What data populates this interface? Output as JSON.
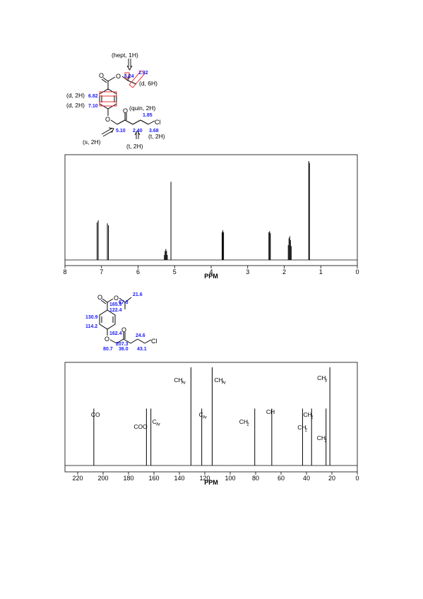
{
  "hnmr_structure": {
    "atoms": {
      "o": "O",
      "cl": "Cl"
    },
    "annotations": {
      "hept": "(hept, 1H)",
      "d6h": "(d, 6H)",
      "d2h_a": "(d, 2H)",
      "d2h_b": "(d, 2H)",
      "quin": "(quin, 2H)",
      "s2h": "(s, 2H)",
      "t2h_a": "(t, 2H)",
      "t2h_b": "(t, 2H)"
    },
    "shifts": {
      "ch": "5.24",
      "ch3": "1.32",
      "ar_a": "6.82",
      "ar_b": "7.10",
      "quin": "1.85",
      "och2": "5.10",
      "coch2": "2.40",
      "ch2cl": "3.68"
    }
  },
  "cnmr_structure": {
    "atoms": {
      "o": "O",
      "cl": "Cl"
    },
    "shifts": {
      "ch3": "21.6",
      "ch": "67.3",
      "coo": "165.9",
      "c_ipso": "122.4",
      "ch_ar_a": "130.9",
      "ch_ar_b": "114.2",
      "c_o": "162.4",
      "co": "207.3",
      "ch2_b": "24.6",
      "och2": "80.7",
      "coch2": "36.0",
      "ch2cl": "43.1"
    }
  },
  "chart_data": [
    {
      "type": "line",
      "xlabel": "PPM",
      "xlim": [
        8,
        0
      ],
      "xticks": [
        8,
        7,
        6,
        5,
        4,
        3,
        2,
        1,
        0
      ],
      "peaks": [
        {
          "shift": 7.12,
          "height": 0.38
        },
        {
          "shift": 7.09,
          "height": 0.4
        },
        {
          "shift": 6.84,
          "height": 0.37
        },
        {
          "shift": 6.81,
          "height": 0.35
        },
        {
          "shift": 5.28,
          "height": 0.05
        },
        {
          "shift": 5.26,
          "height": 0.09
        },
        {
          "shift": 5.24,
          "height": 0.11
        },
        {
          "shift": 5.22,
          "height": 0.09
        },
        {
          "shift": 5.2,
          "height": 0.05
        },
        {
          "shift": 5.1,
          "height": 0.79
        },
        {
          "shift": 3.7,
          "height": 0.28
        },
        {
          "shift": 3.68,
          "height": 0.3
        },
        {
          "shift": 3.66,
          "height": 0.28
        },
        {
          "shift": 2.42,
          "height": 0.28
        },
        {
          "shift": 2.4,
          "height": 0.29
        },
        {
          "shift": 2.38,
          "height": 0.27
        },
        {
          "shift": 1.89,
          "height": 0.15
        },
        {
          "shift": 1.87,
          "height": 0.22
        },
        {
          "shift": 1.85,
          "height": 0.24
        },
        {
          "shift": 1.83,
          "height": 0.2
        },
        {
          "shift": 1.81,
          "height": 0.14
        },
        {
          "shift": 1.33,
          "height": 1.0
        },
        {
          "shift": 1.31,
          "height": 0.98
        }
      ]
    },
    {
      "type": "bar",
      "xlabel": "PPM",
      "xlim": [
        230,
        0
      ],
      "xticks": [
        220,
        200,
        180,
        160,
        140,
        120,
        100,
        80,
        60,
        40,
        20,
        0
      ],
      "peaks": [
        {
          "shift": 207.3,
          "height": 0.58,
          "label": "CO",
          "sub": ""
        },
        {
          "shift": 165.9,
          "height": 0.58,
          "label": "COO",
          "sub": ""
        },
        {
          "shift": 162.4,
          "height": 0.58,
          "label": "C",
          "sub": "Ar"
        },
        {
          "shift": 130.9,
          "height": 1.0,
          "label": "CH",
          "sub": "Ar"
        },
        {
          "shift": 122.4,
          "height": 0.58,
          "label": "C",
          "sub": "Ar"
        },
        {
          "shift": 114.2,
          "height": 1.0,
          "label": "CH",
          "sub": "Ar"
        },
        {
          "shift": 80.7,
          "height": 0.58,
          "label": "CH",
          "sub": "2"
        },
        {
          "shift": 67.3,
          "height": 0.58,
          "label": "CH",
          "sub": ""
        },
        {
          "shift": 43.1,
          "height": 0.58,
          "label": "CH",
          "sub": "2"
        },
        {
          "shift": 36.0,
          "height": 0.58,
          "label": "CH",
          "sub": "2"
        },
        {
          "shift": 24.6,
          "height": 0.58,
          "label": "CH",
          "sub": "2"
        },
        {
          "shift": 21.6,
          "height": 1.0,
          "label": "CH",
          "sub": "3"
        }
      ]
    }
  ]
}
